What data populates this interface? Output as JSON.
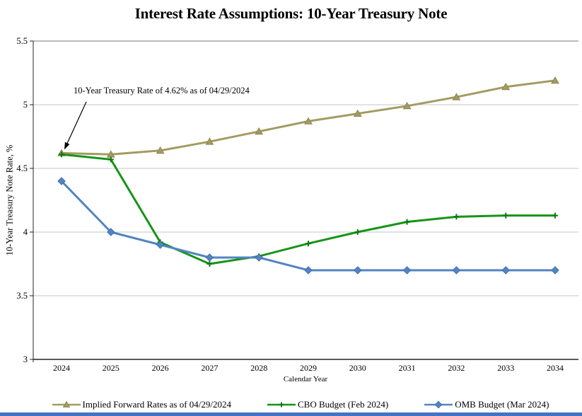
{
  "title": "Interest Rate Assumptions: 10-Year Treasury Note",
  "annotation": {
    "text": "10-Year Treasury Rate of 4.62% as of 04/29/2024",
    "target_year": 2024,
    "target_value": 4.62
  },
  "chart_data": {
    "type": "line",
    "title": "Interest Rate Assumptions: 10-Year Treasury Note",
    "xlabel": "Calendar Year",
    "ylabel": "10-Year Treasury  Note Rate, %",
    "ylim": [
      3,
      5.5
    ],
    "yticks": [
      3,
      3.5,
      4,
      4.5,
      5,
      5.5
    ],
    "ytick_labels": [
      "3",
      "3.5",
      "4",
      "4.5",
      "5",
      "5.5"
    ],
    "x": [
      2024,
      2025,
      2026,
      2027,
      2028,
      2029,
      2030,
      2031,
      2032,
      2033,
      2034
    ],
    "grid": true,
    "legend_position": "bottom",
    "series": [
      {
        "name": "Implied Forward Rates as of 04/29/2024",
        "marker": "triangle",
        "color": "#A39B61",
        "marker_edge": "#877F4A",
        "values": [
          4.62,
          4.61,
          4.64,
          4.71,
          4.79,
          4.87,
          4.93,
          4.99,
          5.06,
          5.14,
          5.19
        ]
      },
      {
        "name": "CBO Budget (Feb 2024)",
        "marker": "plus",
        "color": "#169416",
        "marker_edge": "#0E7A0E",
        "values": [
          4.61,
          4.57,
          3.92,
          3.75,
          3.81,
          3.91,
          4.0,
          4.08,
          4.12,
          4.13,
          4.13
        ]
      },
      {
        "name": "OMB Budget (Mar 2024)",
        "marker": "diamond",
        "color": "#5284C2",
        "marker_edge": "#3A68A3",
        "values": [
          4.4,
          4.0,
          3.9,
          3.8,
          3.8,
          3.7,
          3.7,
          3.7,
          3.7,
          3.7,
          3.7
        ]
      }
    ]
  },
  "colors": {
    "gridline": "#C5C5C5",
    "plot_top_border": "#777777",
    "axis": "#222222",
    "annotation_arrow": "#000000",
    "bottom_bar": "#4472C4"
  }
}
